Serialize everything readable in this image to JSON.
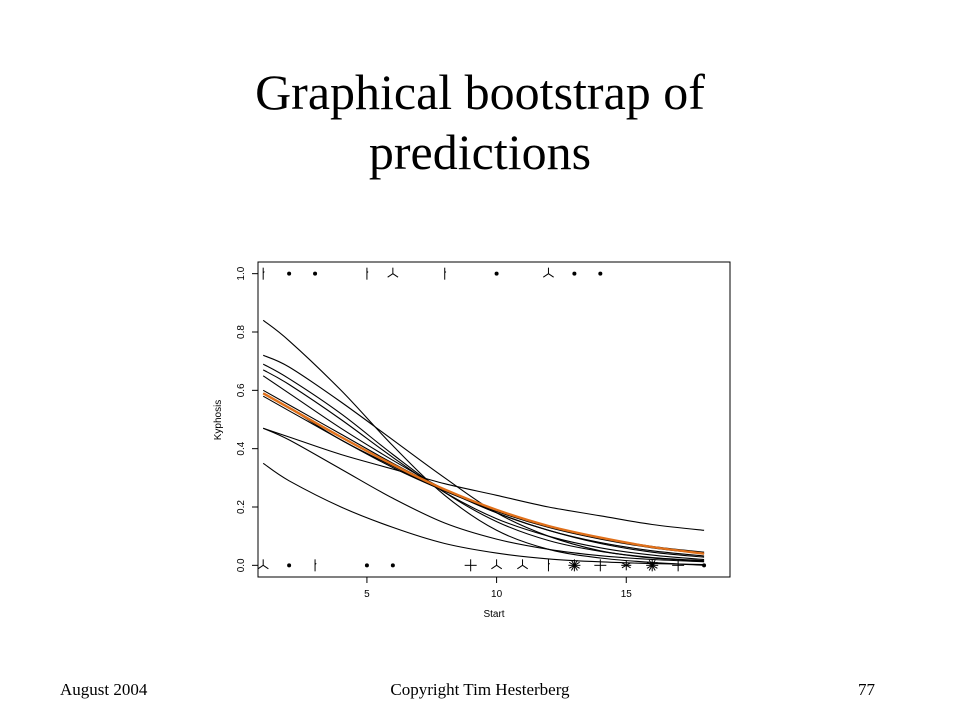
{
  "slide": {
    "title_line1": "Graphical bootstrap of",
    "title_line2": "predictions"
  },
  "footer": {
    "left": "August 2004",
    "center": "Copyright Tim Hesterberg",
    "right": "77"
  },
  "chart_data": {
    "type": "line",
    "title": "",
    "xlabel": "Start",
    "ylabel": "Kyphosis",
    "xlim": [
      0.8,
      19.0
    ],
    "ylim": [
      -0.04,
      1.04
    ],
    "xticks": [
      5,
      10,
      15
    ],
    "yticks": [
      0.0,
      0.2,
      0.4,
      0.6,
      0.8,
      1.0
    ],
    "ytick_labels": [
      "0.0",
      "0.2",
      "0.4",
      "0.6",
      "0.8",
      "1.0"
    ],
    "grid": false,
    "legend": "none",
    "series": [
      {
        "role": "bootstrap",
        "color": "#000000",
        "x": [
          1,
          2,
          4,
          6,
          8,
          10,
          12,
          14,
          16,
          18
        ],
        "y": [
          0.84,
          0.77,
          0.6,
          0.41,
          0.24,
          0.12,
          0.055,
          0.025,
          0.01,
          0.0
        ]
      },
      {
        "role": "bootstrap",
        "color": "#000000",
        "x": [
          1,
          2,
          4,
          6,
          8,
          10,
          12,
          14,
          16,
          18
        ],
        "y": [
          0.72,
          0.68,
          0.56,
          0.43,
          0.3,
          0.18,
          0.1,
          0.05,
          0.025,
          0.015
        ]
      },
      {
        "role": "bootstrap",
        "color": "#000000",
        "x": [
          1,
          2,
          4,
          6,
          8,
          10,
          12,
          14,
          16,
          18
        ],
        "y": [
          0.69,
          0.64,
          0.52,
          0.38,
          0.25,
          0.15,
          0.085,
          0.048,
          0.027,
          0.016
        ]
      },
      {
        "role": "bootstrap",
        "color": "#000000",
        "x": [
          1,
          2,
          4,
          6,
          8,
          10,
          12,
          14,
          16,
          18
        ],
        "y": [
          0.67,
          0.62,
          0.5,
          0.37,
          0.25,
          0.16,
          0.1,
          0.06,
          0.035,
          0.02
        ]
      },
      {
        "role": "bootstrap",
        "color": "#000000",
        "x": [
          1,
          2,
          4,
          6,
          8,
          10,
          12,
          14,
          16,
          18
        ],
        "y": [
          0.65,
          0.59,
          0.47,
          0.36,
          0.26,
          0.18,
          0.12,
          0.075,
          0.045,
          0.028
        ]
      },
      {
        "role": "bootstrap",
        "color": "#000000",
        "x": [
          1,
          2,
          4,
          6,
          8,
          10,
          12,
          14,
          16,
          18
        ],
        "y": [
          0.59,
          0.54,
          0.43,
          0.34,
          0.255,
          0.19,
          0.135,
          0.095,
          0.065,
          0.045
        ]
      },
      {
        "role": "bootstrap",
        "color": "#000000",
        "x": [
          1,
          2,
          4,
          6,
          8,
          10,
          12,
          14,
          16,
          18
        ],
        "y": [
          0.47,
          0.44,
          0.38,
          0.33,
          0.28,
          0.24,
          0.2,
          0.17,
          0.14,
          0.12
        ]
      },
      {
        "role": "bootstrap",
        "color": "#000000",
        "x": [
          1,
          2,
          4,
          6,
          8,
          10,
          12,
          14,
          16,
          18
        ],
        "y": [
          0.47,
          0.43,
          0.33,
          0.23,
          0.145,
          0.09,
          0.055,
          0.033,
          0.02,
          0.012
        ]
      },
      {
        "role": "bootstrap",
        "color": "#000000",
        "x": [
          1,
          2,
          4,
          6,
          8,
          10,
          12,
          14,
          16,
          18
        ],
        "y": [
          0.35,
          0.29,
          0.2,
          0.13,
          0.075,
          0.042,
          0.022,
          0.012,
          0.006,
          0.003
        ]
      },
      {
        "role": "bootstrap",
        "color": "#000000",
        "x": [
          1,
          2,
          4,
          6,
          8,
          10,
          12,
          14,
          16,
          18
        ],
        "y": [
          0.6,
          0.55,
          0.45,
          0.35,
          0.26,
          0.18,
          0.12,
          0.078,
          0.05,
          0.032
        ]
      },
      {
        "role": "bootstrap",
        "color": "#000000",
        "x": [
          1,
          2,
          4,
          6,
          8,
          10,
          12,
          14,
          16,
          18
        ],
        "y": [
          0.58,
          0.53,
          0.43,
          0.335,
          0.255,
          0.185,
          0.13,
          0.09,
          0.06,
          0.04
        ]
      },
      {
        "role": "estimate",
        "color": "#e0701a",
        "x": [
          1,
          2,
          4,
          6,
          8,
          10,
          12,
          14,
          16,
          18
        ],
        "y": [
          0.59,
          0.54,
          0.44,
          0.345,
          0.26,
          0.19,
          0.135,
          0.095,
          0.063,
          0.04
        ]
      }
    ],
    "points": [
      {
        "x": 1,
        "y": 1,
        "symbol": "bar"
      },
      {
        "x": 2,
        "y": 1,
        "symbol": "dot"
      },
      {
        "x": 3,
        "y": 1,
        "symbol": "dot"
      },
      {
        "x": 5,
        "y": 1,
        "symbol": "bar"
      },
      {
        "x": 6,
        "y": 1,
        "symbol": "tri"
      },
      {
        "x": 8,
        "y": 1,
        "symbol": "bar"
      },
      {
        "x": 10,
        "y": 1,
        "symbol": "dot"
      },
      {
        "x": 12,
        "y": 1,
        "symbol": "tri"
      },
      {
        "x": 13,
        "y": 1,
        "symbol": "dot"
      },
      {
        "x": 14,
        "y": 1,
        "symbol": "dot"
      },
      {
        "x": 1,
        "y": 0,
        "symbol": "tri"
      },
      {
        "x": 2,
        "y": 0,
        "symbol": "dot"
      },
      {
        "x": 3,
        "y": 0,
        "symbol": "bar"
      },
      {
        "x": 5,
        "y": 0,
        "symbol": "dot"
      },
      {
        "x": 6,
        "y": 0,
        "symbol": "dot"
      },
      {
        "x": 9,
        "y": 0,
        "symbol": "plus"
      },
      {
        "x": 10,
        "y": 0,
        "symbol": "tri"
      },
      {
        "x": 11,
        "y": 0,
        "symbol": "tri"
      },
      {
        "x": 12,
        "y": 0,
        "symbol": "bar"
      },
      {
        "x": 13,
        "y": 0,
        "symbol": "star"
      },
      {
        "x": 14,
        "y": 0,
        "symbol": "plus"
      },
      {
        "x": 15,
        "y": 0,
        "symbol": "asterisk"
      },
      {
        "x": 16,
        "y": 0,
        "symbol": "star"
      },
      {
        "x": 17,
        "y": 0,
        "symbol": "plus"
      },
      {
        "x": 18,
        "y": 0,
        "symbol": "dot"
      }
    ]
  }
}
